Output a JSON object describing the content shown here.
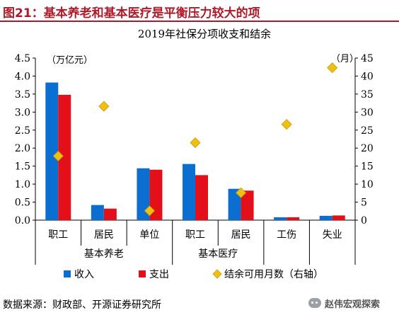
{
  "figure_title": "图21：基本养老和基本医疗是平衡压力较大的项",
  "source_note": "数据来源：财政部、开源证券研究所",
  "watermark_text": "赵伟宏观探索",
  "colors": {
    "income": "#0b6fd1",
    "expense": "#e3101a",
    "months": "#f0c010",
    "title_red": "#b0192a"
  },
  "chart_data": {
    "type": "bar",
    "title": "2019年社保分项收支和结余",
    "categories": [
      "职工",
      "居民",
      "单位",
      "职工",
      "居民",
      "工伤",
      "失业"
    ],
    "groups": [
      {
        "label": "基本养老",
        "span": [
          0,
          2
        ]
      },
      {
        "label": "基本医疗",
        "span": [
          3,
          4
        ]
      },
      {
        "label": "",
        "span": [
          5,
          5
        ]
      },
      {
        "label": "",
        "span": [
          6,
          6
        ]
      }
    ],
    "series": [
      {
        "name": "收入",
        "axis": "left",
        "values": [
          3.82,
          0.42,
          1.44,
          1.56,
          0.87,
          0.08,
          0.12
        ]
      },
      {
        "name": "支出",
        "axis": "left",
        "values": [
          3.48,
          0.32,
          1.4,
          1.25,
          0.82,
          0.08,
          0.13
        ]
      },
      {
        "name": "结余可用月数（右轴）",
        "axis": "right",
        "marker": "diamond",
        "values": [
          17.8,
          31.6,
          2.6,
          21.5,
          7.6,
          26.6,
          42.3
        ]
      }
    ],
    "y_left": {
      "unit": "（万亿元）",
      "min": 0,
      "max": 4.5,
      "ticks": [
        "0.0",
        "0.5",
        "1.0",
        "1.5",
        "2.0",
        "2.5",
        "3.0",
        "3.5",
        "4.0",
        "4.5"
      ]
    },
    "y_right": {
      "unit": "（月）",
      "min": 0,
      "max": 45,
      "ticks": [
        "0",
        "5",
        "10",
        "15",
        "20",
        "25",
        "30",
        "35",
        "40",
        "45"
      ]
    },
    "grid": false,
    "legend": "bottom"
  }
}
